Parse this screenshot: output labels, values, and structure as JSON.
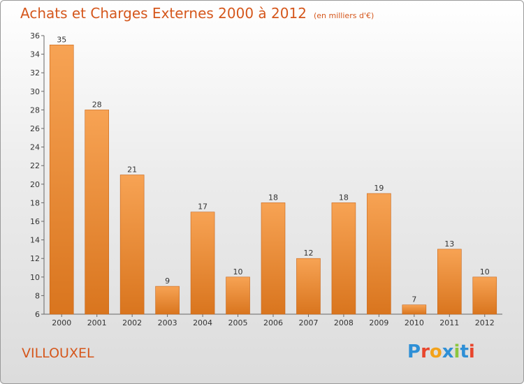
{
  "title": "Achats et Charges Externes 2000 à 2012",
  "unit": "(en milliers d'€)",
  "city": "VILLOUXEL",
  "logo": {
    "letters": [
      {
        "ch": "P",
        "color": "#2e8fd6"
      },
      {
        "ch": "r",
        "color": "#e8452c"
      },
      {
        "ch": "o",
        "color": "#f3a21a"
      },
      {
        "ch": "x",
        "color": "#2e8fd6"
      },
      {
        "ch": "i",
        "color": "#8cc63f"
      },
      {
        "ch": "t",
        "color": "#2e8fd6"
      },
      {
        "ch": "i",
        "color": "#e8452c"
      }
    ]
  },
  "chart_data": {
    "type": "bar",
    "categories": [
      "2000",
      "2001",
      "2002",
      "2003",
      "2004",
      "2005",
      "2006",
      "2007",
      "2008",
      "2009",
      "2010",
      "2011",
      "2012"
    ],
    "values": [
      35,
      28,
      21,
      9,
      17,
      10,
      18,
      12,
      18,
      19,
      7,
      13,
      10
    ],
    "title": "Achats et Charges Externes 2000 à 2012",
    "xlabel": "",
    "ylabel": "",
    "ylim": [
      6,
      36
    ],
    "yticks": [
      6,
      8,
      10,
      12,
      14,
      16,
      18,
      20,
      22,
      24,
      26,
      28,
      30,
      32,
      34,
      36
    ],
    "grid": false,
    "colors": {
      "bar_top": "#f7a354",
      "bar_bottom": "#d9751e",
      "bar_edge": "#c8661a"
    }
  }
}
